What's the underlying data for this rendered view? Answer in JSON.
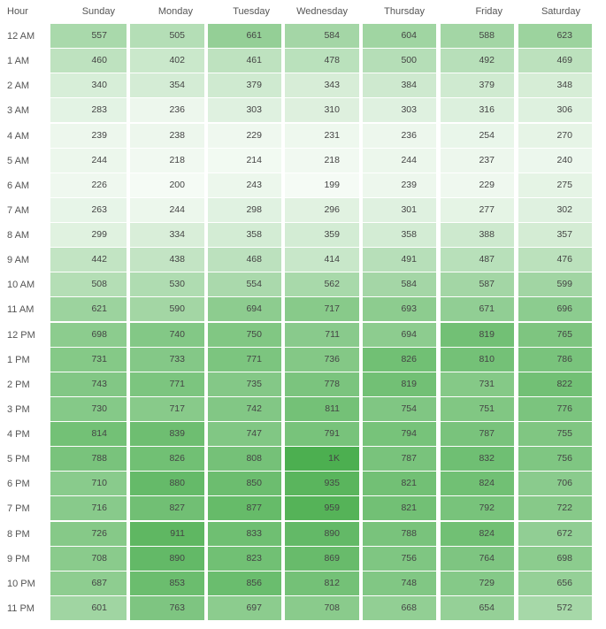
{
  "chart_data": {
    "type": "heatmap",
    "row_header": "Hour",
    "columns": [
      "Sunday",
      "Monday",
      "Tuesday",
      "Wednesday",
      "Thursday",
      "Friday",
      "Saturday"
    ],
    "rows": [
      "12 AM",
      "1 AM",
      "2 AM",
      "3 AM",
      "4 AM",
      "5 AM",
      "6 AM",
      "7 AM",
      "8 AM",
      "9 AM",
      "10 AM",
      "11 AM",
      "12 PM",
      "1 PM",
      "2 PM",
      "3 PM",
      "4 PM",
      "5 PM",
      "6 PM",
      "7 PM",
      "8 PM",
      "9 PM",
      "10 PM",
      "11 PM"
    ],
    "values": [
      [
        557,
        505,
        661,
        584,
        604,
        588,
        623
      ],
      [
        460,
        402,
        461,
        478,
        500,
        492,
        469
      ],
      [
        340,
        354,
        379,
        343,
        384,
        379,
        348
      ],
      [
        283,
        236,
        303,
        310,
        303,
        316,
        306
      ],
      [
        239,
        238,
        229,
        231,
        236,
        254,
        270
      ],
      [
        244,
        218,
        214,
        218,
        244,
        237,
        240
      ],
      [
        226,
        200,
        243,
        199,
        239,
        229,
        275
      ],
      [
        263,
        244,
        298,
        296,
        301,
        277,
        302
      ],
      [
        299,
        334,
        358,
        359,
        358,
        388,
        357
      ],
      [
        442,
        438,
        468,
        414,
        491,
        487,
        476
      ],
      [
        508,
        530,
        554,
        562,
        584,
        587,
        599
      ],
      [
        621,
        590,
        694,
        717,
        693,
        671,
        696
      ],
      [
        698,
        740,
        750,
        711,
        694,
        819,
        765
      ],
      [
        731,
        733,
        771,
        736,
        826,
        810,
        786
      ],
      [
        743,
        771,
        735,
        778,
        819,
        731,
        822
      ],
      [
        730,
        717,
        742,
        811,
        754,
        751,
        776
      ],
      [
        814,
        839,
        747,
        791,
        794,
        787,
        755
      ],
      [
        788,
        826,
        808,
        1000,
        787,
        832,
        756
      ],
      [
        710,
        880,
        850,
        935,
        821,
        824,
        706
      ],
      [
        716,
        827,
        877,
        959,
        821,
        792,
        722
      ],
      [
        726,
        911,
        833,
        890,
        788,
        824,
        672
      ],
      [
        708,
        890,
        823,
        869,
        756,
        764,
        698
      ],
      [
        687,
        853,
        856,
        812,
        748,
        729,
        656
      ],
      [
        601,
        763,
        697,
        708,
        668,
        654,
        572
      ]
    ],
    "labels": [
      [
        "557",
        "505",
        "661",
        "584",
        "604",
        "588",
        "623"
      ],
      [
        "460",
        "402",
        "461",
        "478",
        "500",
        "492",
        "469"
      ],
      [
        "340",
        "354",
        "379",
        "343",
        "384",
        "379",
        "348"
      ],
      [
        "283",
        "236",
        "303",
        "310",
        "303",
        "316",
        "306"
      ],
      [
        "239",
        "238",
        "229",
        "231",
        "236",
        "254",
        "270"
      ],
      [
        "244",
        "218",
        "214",
        "218",
        "244",
        "237",
        "240"
      ],
      [
        "226",
        "200",
        "243",
        "199",
        "239",
        "229",
        "275"
      ],
      [
        "263",
        "244",
        "298",
        "296",
        "301",
        "277",
        "302"
      ],
      [
        "299",
        "334",
        "358",
        "359",
        "358",
        "388",
        "357"
      ],
      [
        "442",
        "438",
        "468",
        "414",
        "491",
        "487",
        "476"
      ],
      [
        "508",
        "530",
        "554",
        "562",
        "584",
        "587",
        "599"
      ],
      [
        "621",
        "590",
        "694",
        "717",
        "693",
        "671",
        "696"
      ],
      [
        "698",
        "740",
        "750",
        "711",
        "694",
        "819",
        "765"
      ],
      [
        "731",
        "733",
        "771",
        "736",
        "826",
        "810",
        "786"
      ],
      [
        "743",
        "771",
        "735",
        "778",
        "819",
        "731",
        "822"
      ],
      [
        "730",
        "717",
        "742",
        "811",
        "754",
        "751",
        "776"
      ],
      [
        "814",
        "839",
        "747",
        "791",
        "794",
        "787",
        "755"
      ],
      [
        "788",
        "826",
        "808",
        "1K",
        "787",
        "832",
        "756"
      ],
      [
        "710",
        "880",
        "850",
        "935",
        "821",
        "824",
        "706"
      ],
      [
        "716",
        "827",
        "877",
        "959",
        "821",
        "792",
        "722"
      ],
      [
        "726",
        "911",
        "833",
        "890",
        "788",
        "824",
        "672"
      ],
      [
        "708",
        "890",
        "823",
        "869",
        "756",
        "764",
        "698"
      ],
      [
        "687",
        "853",
        "856",
        "812",
        "748",
        "729",
        "656"
      ],
      [
        "601",
        "763",
        "697",
        "708",
        "668",
        "654",
        "572"
      ]
    ],
    "color_low": "#f5fbf5",
    "color_high": "#4caf50",
    "grid": false
  }
}
